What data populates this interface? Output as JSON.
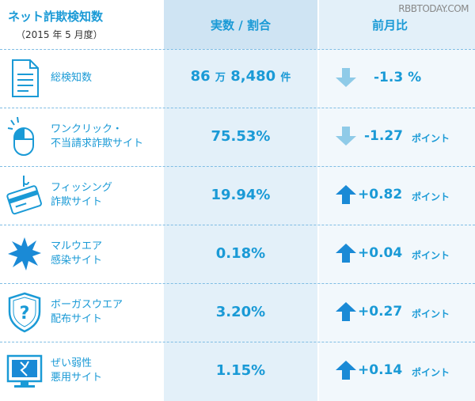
{
  "header": {
    "title": "ネット詐欺検知数",
    "subtitle": "（2015 年 5 月度）",
    "col_value": "実数 / 割合",
    "col_change": "前月比",
    "watermark": "RBBTODAY.COM"
  },
  "rows": [
    {
      "icon": "document-icon",
      "label1": "総検知数",
      "label2": "",
      "value": "86",
      "value_unit1": "万",
      "value_rest": "8,480",
      "value_unit2": "件",
      "direction": "down",
      "change": "-1.3 %",
      "unit": ""
    },
    {
      "icon": "mouse-click-icon",
      "label1": "ワンクリック・",
      "label2": "不当請求詐欺サイト",
      "value": "75.53%",
      "direction": "down",
      "change": "-1.27",
      "unit": "ポイント"
    },
    {
      "icon": "credit-card-hook-icon",
      "label1": "フィッシング",
      "label2": "詐欺サイト",
      "value": "19.94%",
      "direction": "up",
      "change": "+0.82",
      "unit": "ポイント"
    },
    {
      "icon": "malware-burst-icon",
      "label1": "マルウエア",
      "label2": "感染サイト",
      "value": "0.18%",
      "direction": "up",
      "change": "+0.04",
      "unit": "ポイント"
    },
    {
      "icon": "question-shield-icon",
      "label1": "ボーガスウエア",
      "label2": "配布サイト",
      "value": "3.20%",
      "direction": "up",
      "change": "+0.27",
      "unit": "ポイント"
    },
    {
      "icon": "broken-monitor-icon",
      "label1": "ぜい弱性",
      "label2": "悪用サイト",
      "value": "1.15%",
      "direction": "up",
      "change": "+0.14",
      "unit": "ポイント"
    }
  ],
  "colors": {
    "accent": "#1a9ad6",
    "arrow_up": "#1a8ad6",
    "arrow_down": "#8fcbe8"
  }
}
